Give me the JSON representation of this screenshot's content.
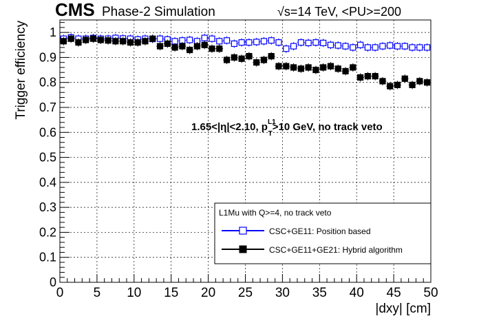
{
  "header": {
    "cms": "CMS",
    "simulation": "Phase-2 Simulation",
    "energy_sqrt": "√s",
    "energy_rest": "=14 TeV, <PU>=200"
  },
  "annotation": {
    "prefix": "1.65<|η|<2.10, p",
    "sup": "L1",
    "sub": "T",
    "suffix": ">10 GeV, no track veto"
  },
  "legend": {
    "title": "L1Mu with Q>=4, no track veto",
    "entries": [
      {
        "label": "CSC+GE11: Position based",
        "color": "#0000ff",
        "marker": "open-square"
      },
      {
        "label": "CSC+GE11+GE21: Hybrid algorithm",
        "color": "#000000",
        "marker": "filled-square"
      }
    ]
  },
  "chart_data": {
    "type": "scatter",
    "xlabel": "|dxy| [cm]",
    "ylabel": "Trigger efficiency",
    "xlim": [
      0,
      50
    ],
    "ylim": [
      0,
      1.05
    ],
    "xticks": [
      "0",
      "5",
      "10",
      "15",
      "20",
      "25",
      "30",
      "35",
      "40",
      "45",
      "50"
    ],
    "yticks": [
      "0",
      "0.1",
      "0.2",
      "0.3",
      "0.4",
      "0.5",
      "0.6",
      "0.7",
      "0.8",
      "0.9",
      "1"
    ],
    "grid": true,
    "legend_position": "bottom-right",
    "series": [
      {
        "name": "CSC+GE11: Position based",
        "color": "#0000ff",
        "marker": "open-square",
        "x": [
          0.5,
          1.5,
          2.5,
          3.5,
          4.5,
          5.5,
          6.5,
          7.5,
          8.5,
          9.5,
          10.5,
          11.5,
          12.5,
          13.5,
          14.5,
          15.5,
          16.5,
          17.5,
          18.5,
          19.5,
          20.5,
          21.5,
          22.5,
          23.5,
          24.5,
          25.5,
          26.5,
          27.5,
          28.5,
          29.5,
          30.5,
          31.5,
          32.5,
          33.5,
          34.5,
          35.5,
          36.5,
          37.5,
          38.5,
          39.5,
          40.5,
          41.5,
          42.5,
          43.5,
          44.5,
          45.5,
          46.5,
          47.5,
          48.5,
          49.5
        ],
        "y": [
          0.975,
          0.98,
          0.975,
          0.975,
          0.978,
          0.975,
          0.975,
          0.978,
          0.976,
          0.975,
          0.972,
          0.975,
          0.974,
          0.975,
          0.972,
          0.965,
          0.968,
          0.97,
          0.965,
          0.978,
          0.975,
          0.965,
          0.968,
          0.955,
          0.96,
          0.96,
          0.962,
          0.965,
          0.968,
          0.96,
          0.935,
          0.945,
          0.96,
          0.958,
          0.96,
          0.958,
          0.95,
          0.948,
          0.945,
          0.94,
          0.95,
          0.94,
          0.94,
          0.945,
          0.948,
          0.945,
          0.945,
          0.94,
          0.94,
          0.94
        ]
      },
      {
        "name": "CSC+GE11+GE21: Hybrid algorithm",
        "color": "#000000",
        "marker": "filled-square",
        "x": [
          0.5,
          1.5,
          2.5,
          3.5,
          4.5,
          5.5,
          6.5,
          7.5,
          8.5,
          9.5,
          10.5,
          11.5,
          12.5,
          13.5,
          14.5,
          15.5,
          16.5,
          17.5,
          18.5,
          19.5,
          20.5,
          21.5,
          22.5,
          23.5,
          24.5,
          25.5,
          26.5,
          27.5,
          28.5,
          29.5,
          30.5,
          31.5,
          32.5,
          33.5,
          34.5,
          35.5,
          36.5,
          37.5,
          38.5,
          39.5,
          40.5,
          41.5,
          42.5,
          43.5,
          44.5,
          45.5,
          46.5,
          47.5,
          48.5,
          49.5
        ],
        "y": [
          0.965,
          0.975,
          0.96,
          0.97,
          0.975,
          0.97,
          0.968,
          0.965,
          0.965,
          0.96,
          0.96,
          0.965,
          0.975,
          0.945,
          0.955,
          0.94,
          0.945,
          0.93,
          0.945,
          0.95,
          0.935,
          0.935,
          0.89,
          0.9,
          0.895,
          0.905,
          0.88,
          0.89,
          0.905,
          0.865,
          0.865,
          0.86,
          0.855,
          0.86,
          0.85,
          0.86,
          0.865,
          0.855,
          0.845,
          0.86,
          0.82,
          0.825,
          0.825,
          0.805,
          0.785,
          0.79,
          0.815,
          0.79,
          0.805,
          0.8
        ]
      }
    ]
  }
}
